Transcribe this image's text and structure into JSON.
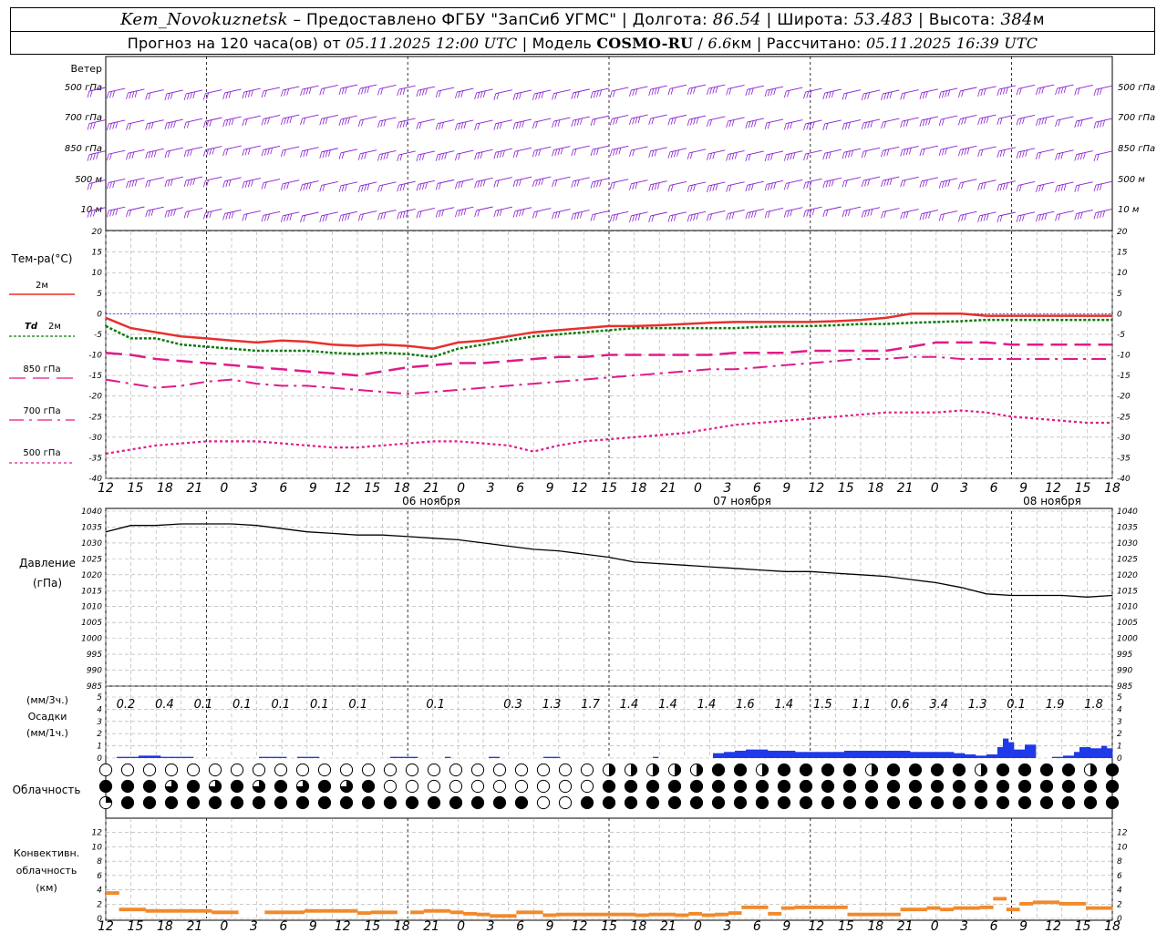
{
  "header": {
    "station": "Kem_Novokuznetsk",
    "provider": " – Предоставлено ФГБУ \"ЗапСиб УГМС\" | Долгота: ",
    "lon": "86.54",
    "lat_label": " | Широта: ",
    "lat": "53.483",
    "alt_label": " | Высота: ",
    "alt": "384",
    "alt_unit": "м",
    "forecast_label": "Прогноз на 120 часа(ов) от ",
    "issued": "05.11.2025 12:00 UTC",
    "model_label": "  | Модель ",
    "model": "COSMO-RU",
    "res_sep": " / ",
    "res": "6.6",
    "res_unit": "км",
    "calc_label": " | Рассчитано: ",
    "calc": "05.11.2025 16:39 UTC"
  },
  "labels": {
    "wind": "Ветер",
    "levels": [
      "500 гПа",
      "700 гПа",
      "850 гПа",
      "500 м",
      "10  м"
    ],
    "temp_title": "Тем-ра(°С)",
    "legend_t2m": "2м",
    "legend_td_sym": "Td",
    "legend_td": "2м",
    "legend_850": "850 гПа",
    "legend_700": "700 гПа",
    "legend_500": "500 гПа",
    "pressure_title": "Давление",
    "pressure_unit": "(гПа)",
    "precip_unit3": "(мм/3ч.)",
    "precip_title": "Осадки",
    "precip_unit1": "(мм/1ч.)",
    "cloud_title": "Облачность",
    "conv_title1": "Конвективн.",
    "conv_title2": "облачность",
    "conv_unit": "(км)"
  },
  "colors": {
    "wind": "#8a1fd0",
    "t2m": "#e8302a",
    "td": "#0a7a0a",
    "t850": "#e01a8a",
    "t700": "#e01a8a",
    "t500": "#e01a8a",
    "pressure": "#000000",
    "precip": "#1f3ae8",
    "conv": "#f08a2c",
    "zero_line": "#2a3ae0"
  },
  "chart_data": [
    {
      "type": "line",
      "name": "temperature",
      "x_hours": [
        0,
        3,
        6,
        9,
        12,
        15,
        18,
        21,
        24,
        27,
        30,
        33,
        36,
        39,
        42,
        45,
        48,
        51,
        54,
        57,
        60,
        63,
        66,
        69,
        72,
        75,
        78,
        81,
        84,
        87,
        90,
        93,
        96,
        99,
        102,
        105,
        108,
        111,
        114,
        117,
        120
      ],
      "x_tick_labels": [
        "12",
        "15",
        "18",
        "21",
        "0",
        "3",
        "6",
        "9",
        "12",
        "15",
        "18",
        "21",
        "0",
        "3",
        "6",
        "9",
        "12",
        "15",
        "18",
        "21",
        "0",
        "3",
        "6",
        "9",
        "12",
        "15",
        "18",
        "21",
        "0",
        "3",
        "6",
        "9",
        "12",
        "15",
        "18"
      ],
      "date_labels": [
        "06 ноября",
        "07 ноября",
        "08 ноября"
      ],
      "ylim": [
        -40,
        20
      ],
      "yticks": [
        20,
        15,
        10,
        5,
        0,
        -5,
        -10,
        -15,
        -20,
        -25,
        -30,
        -35,
        -40
      ],
      "series": [
        {
          "name": "2м",
          "values": [
            -1,
            -3.5,
            -4.5,
            -5.5,
            -6,
            -6.5,
            -7,
            -6.5,
            -6.8,
            -7.5,
            -7.8,
            -7.5,
            -7.8,
            -8.5,
            -7,
            -6.5,
            -5.5,
            -4.5,
            -4,
            -3.5,
            -3,
            -3,
            -2.8,
            -2.5,
            -2.2,
            -2,
            -2,
            -2,
            -2,
            -1.8,
            -1.5,
            -1,
            0,
            0,
            0,
            -0.5,
            -0.5,
            -0.5,
            -0.5,
            -0.5,
            -0.5
          ]
        },
        {
          "name": "Td 2м",
          "values": [
            -3,
            -6,
            -6,
            -7.5,
            -8,
            -8.5,
            -9,
            -9,
            -9,
            -9.5,
            -9.8,
            -9.5,
            -9.8,
            -10.5,
            -8.5,
            -7.5,
            -6.5,
            -5.5,
            -5,
            -4.5,
            -4,
            -3.5,
            -3.5,
            -3.5,
            -3.5,
            -3.5,
            -3.2,
            -3,
            -3,
            -2.8,
            -2.5,
            -2.5,
            -2.2,
            -2,
            -1.8,
            -1.5,
            -1.5,
            -1.5,
            -1.5,
            -1.5,
            -1.5
          ]
        },
        {
          "name": "850 гПа",
          "values": [
            -9.5,
            -10,
            -11,
            -11.5,
            -12,
            -12.5,
            -13,
            -13.5,
            -14,
            -14.5,
            -15,
            -14,
            -13,
            -12.5,
            -12,
            -12,
            -11.5,
            -11,
            -10.5,
            -10.5,
            -10,
            -10,
            -10,
            -10,
            -10,
            -9.5,
            -9.5,
            -9.5,
            -9,
            -9,
            -9,
            -9,
            -8,
            -7,
            -7,
            -7,
            -7.5,
            -7.5,
            -7.5,
            -7.5,
            -7.5
          ]
        },
        {
          "name": "700 гПа",
          "values": [
            -16,
            -17,
            -18,
            -17.5,
            -16.5,
            -16,
            -17,
            -17.5,
            -17.5,
            -18,
            -18.5,
            -19,
            -19.5,
            -19,
            -18.5,
            -18,
            -17.5,
            -17,
            -16.5,
            -16,
            -15.5,
            -15,
            -14.5,
            -14,
            -13.5,
            -13.5,
            -13,
            -12.5,
            -12,
            -11.5,
            -11,
            -11,
            -10.5,
            -10.5,
            -11,
            -11,
            -11,
            -11,
            -11,
            -11,
            -11
          ]
        },
        {
          "name": "500 гПа",
          "values": [
            -34,
            -33,
            -32,
            -31.5,
            -31,
            -31,
            -31,
            -31.5,
            -32,
            -32.5,
            -32.5,
            -32,
            -31.5,
            -31,
            -31,
            -31.5,
            -32,
            -33.5,
            -32,
            -31,
            -30.5,
            -30,
            -29.5,
            -29,
            -28,
            -27,
            -26.5,
            -26,
            -25.5,
            -25,
            -24.5,
            -24,
            -24,
            -24,
            -23.5,
            -24,
            -25,
            -25.5,
            -26,
            -26.5,
            -26.5
          ]
        }
      ]
    },
    {
      "type": "line",
      "name": "pressure",
      "ylim": [
        985,
        1040
      ],
      "yticks": [
        1040,
        1035,
        1030,
        1025,
        1020,
        1015,
        1010,
        1005,
        1000,
        995,
        990,
        985
      ],
      "x_hours": [
        0,
        3,
        6,
        9,
        12,
        15,
        18,
        21,
        24,
        27,
        30,
        33,
        36,
        39,
        42,
        45,
        48,
        51,
        54,
        57,
        60,
        63,
        66,
        69,
        72,
        75,
        78,
        81,
        84,
        87,
        90,
        93,
        96,
        99,
        102,
        105,
        108,
        111,
        114,
        117,
        120
      ],
      "series": [
        {
          "name": "pressure",
          "values": [
            1033.5,
            1035.5,
            1035.5,
            1036,
            1036,
            1036,
            1035.5,
            1034.5,
            1033.5,
            1033,
            1032.5,
            1032.5,
            1032,
            1031.5,
            1031,
            1030,
            1029,
            1028,
            1027.5,
            1026.5,
            1025.5,
            1024,
            1023.5,
            1023,
            1022.5,
            1022,
            1021.5,
            1021,
            1021,
            1020.5,
            1020,
            1019.5,
            1018.5,
            1017.5,
            1016,
            1014,
            1013.5,
            1013.5,
            1013.5,
            1013,
            1013.5
          ]
        }
      ]
    },
    {
      "type": "bar",
      "name": "precipitation",
      "ylim": [
        0,
        5
      ],
      "yticks": [
        5,
        4,
        3,
        2,
        1,
        0
      ],
      "labels_3h": [
        "0.2",
        "0.4",
        "0.1",
        "0.1",
        "0.1",
        "0.1",
        "0.1",
        "",
        "0.1",
        "",
        "0.3",
        "1.3",
        "1.7",
        "1.4",
        "1.4",
        "1.4",
        "1.6",
        "1.4",
        "1.5",
        "1.1",
        "0.6",
        "3.4",
        "1.3",
        "0.1",
        "1.9",
        "1.8"
      ],
      "hourly": [
        0,
        0,
        0.1,
        0.1,
        0.1,
        0.1,
        0.2,
        0.2,
        0.2,
        0.2,
        0.1,
        0.1,
        0.1,
        0.1,
        0.1,
        0.1,
        0,
        0,
        0,
        0,
        0,
        0,
        0,
        0,
        0,
        0,
        0,
        0,
        0.1,
        0.1,
        0.1,
        0.1,
        0.1,
        0,
        0,
        0.1,
        0.1,
        0.1,
        0.1,
        0,
        0,
        0,
        0,
        0,
        0,
        0,
        0,
        0,
        0,
        0,
        0,
        0,
        0.1,
        0.1,
        0.1,
        0.1,
        0.1,
        0,
        0,
        0,
        0,
        0,
        0.1,
        0,
        0,
        0,
        0,
        0,
        0,
        0,
        0.1,
        0.1,
        0,
        0,
        0,
        0,
        0,
        0,
        0,
        0,
        0.1,
        0.1,
        0.1,
        0,
        0,
        0,
        0,
        0,
        0,
        0,
        0,
        0,
        0,
        0,
        0,
        0,
        0,
        0,
        0,
        0,
        0.1,
        0,
        0,
        0,
        0,
        0,
        0,
        0,
        0,
        0,
        0,
        0.4,
        0.4,
        0.5,
        0.5,
        0.6,
        0.6,
        0.7,
        0.7,
        0.7,
        0.7,
        0.6,
        0.6,
        0.6,
        0.6,
        0.6,
        0.5,
        0.5,
        0.5,
        0.5,
        0.5,
        0.5,
        0.5,
        0.5,
        0.5,
        0.6,
        0.6,
        0.6,
        0.6,
        0.6,
        0.6,
        0.6,
        0.6,
        0.6,
        0.6,
        0.6,
        0.6,
        0.5,
        0.5,
        0.5,
        0.5,
        0.5,
        0.5,
        0.5,
        0.5,
        0.4,
        0.4,
        0.3,
        0.3,
        0.2,
        0.2,
        0.3,
        0.3,
        0.9,
        1.6,
        1.3,
        0.7,
        0.7,
        1.1,
        1.1,
        0,
        0,
        0,
        0.1,
        0.1,
        0.2,
        0.2,
        0.5,
        0.9,
        0.9,
        0.8,
        0.8,
        1.0,
        0.8
      ]
    },
    {
      "type": "bar",
      "name": "convective_cloud",
      "ylim": [
        0,
        14
      ],
      "yticks": [
        12,
        10,
        8,
        6,
        4,
        2,
        0
      ],
      "values": [
        3.8,
        1.5,
        1.5,
        1.3,
        1.3,
        1.3,
        1.3,
        1.3,
        1.1,
        1.1,
        0,
        0,
        1.1,
        1.1,
        1.1,
        1.3,
        1.3,
        1.3,
        1.3,
        1.0,
        1.1,
        1.1,
        0,
        1.1,
        1.3,
        1.3,
        1.1,
        0.9,
        0.8,
        0.6,
        0.6,
        1.1,
        1.1,
        0.7,
        0.8,
        0.8,
        0.8,
        0.8,
        0.8,
        0.8,
        0.7,
        0.8,
        0.8,
        0.7,
        0.9,
        0.7,
        0.8,
        1.0,
        1.8,
        1.8,
        0.9,
        1.7,
        1.8,
        1.8,
        1.8,
        1.8,
        0.8,
        0.8,
        0.8,
        0.8,
        1.5,
        1.5,
        1.7,
        1.5,
        1.7,
        1.7,
        1.8,
        3.0,
        1.5,
        2.3,
        2.5,
        2.5,
        2.3,
        2.3,
        1.7,
        1.7
      ]
    }
  ]
}
